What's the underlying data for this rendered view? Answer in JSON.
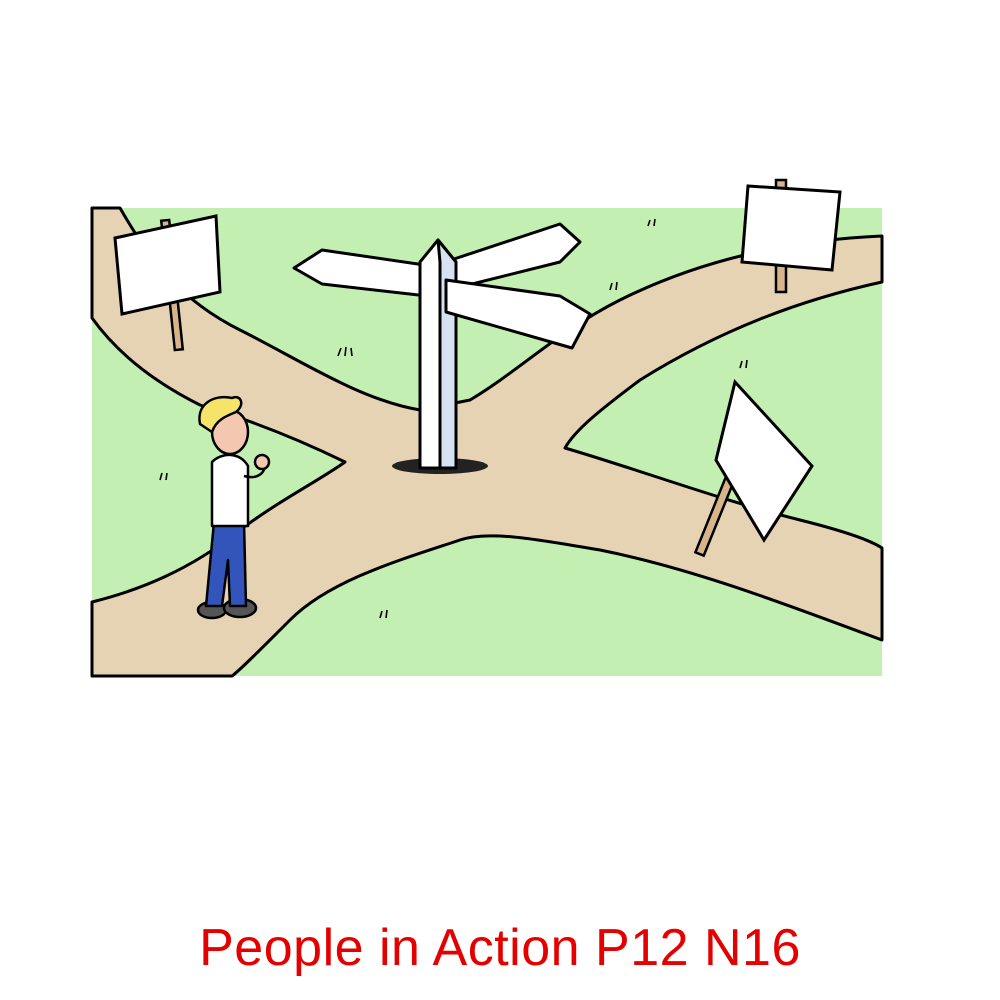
{
  "caption": {
    "text": "People in Action P12 N16"
  },
  "colors": {
    "caption": "#e50000",
    "grass": "#c4efb2",
    "path": "#e5d3b3",
    "outline": "#000000",
    "sign": "#ffffff",
    "signpost_shade": "#d5e2f2",
    "post": "#d8b48a",
    "skin": "#f4c8b0",
    "hair": "#f6e46a",
    "shirt": "#ffffff",
    "jeans": "#3355bb",
    "shoes": "#555555"
  },
  "icons": {
    "signpost": "fingerpost-icon",
    "blank_signs": "blank-sign-icon",
    "person": "thinking-man-icon"
  }
}
